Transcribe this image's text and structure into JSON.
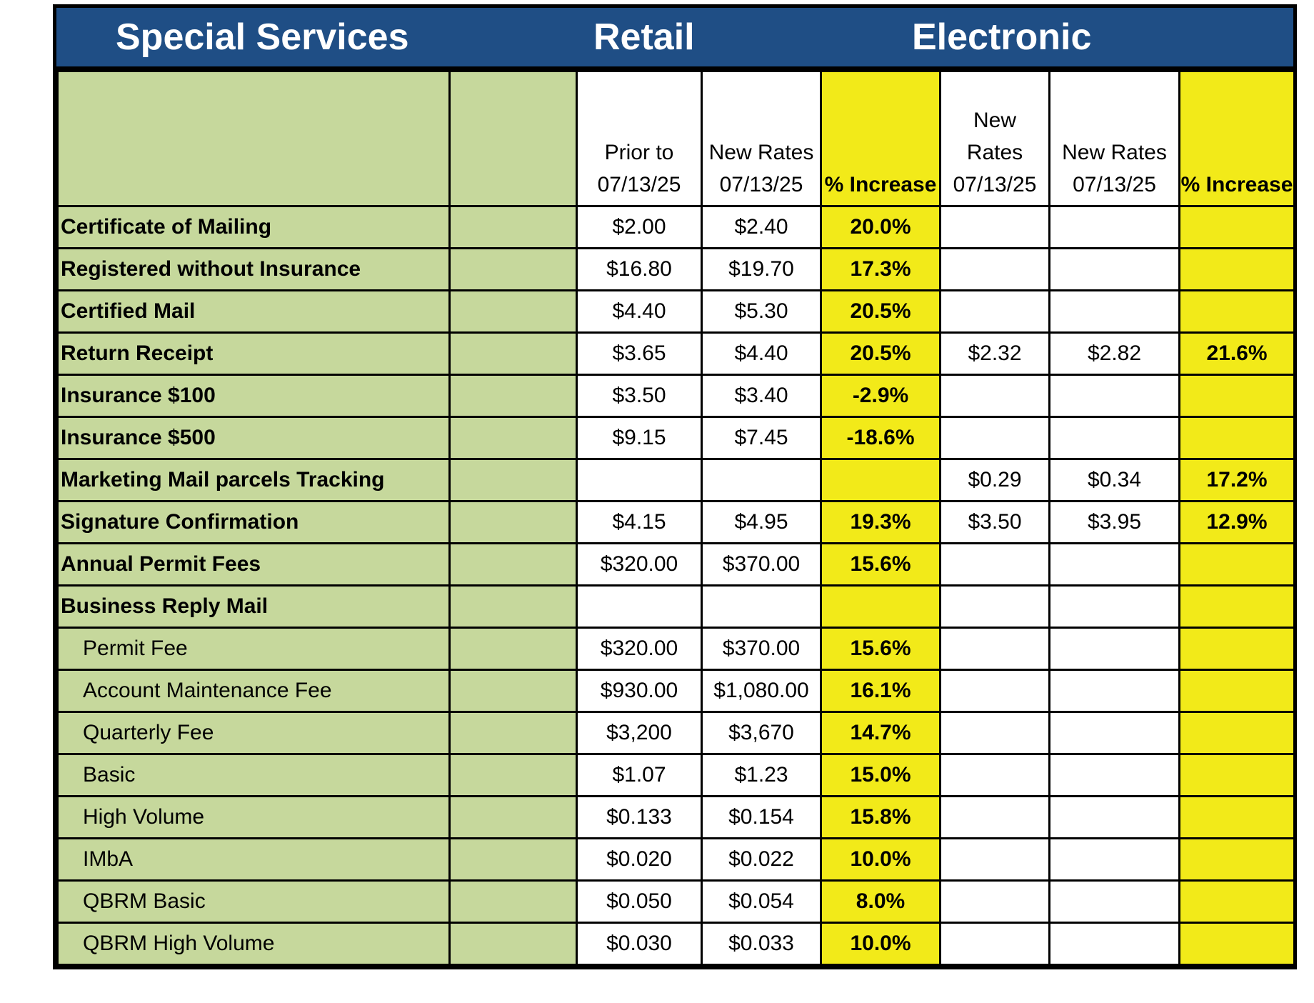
{
  "banner": {
    "title": "Special Services",
    "retail": "Retail",
    "electronic": "Electronic"
  },
  "columns": {
    "retail_prior": [
      "Prior to",
      "07/13/25"
    ],
    "retail_new": [
      "New Rates",
      "07/13/25"
    ],
    "retail_pct": "% Increase",
    "elec_new_a": [
      "New",
      "Rates",
      "07/13/25"
    ],
    "elec_new_b": [
      "New Rates",
      "07/13/25"
    ],
    "elec_pct": "% Increase"
  },
  "rows": [
    {
      "label": "Certificate of Mailing",
      "bold": true,
      "prior": "$2.00",
      "new": "$2.40",
      "pct": "20.0%",
      "e_prior": "",
      "e_new": "",
      "e_pct": ""
    },
    {
      "label": "Registered without Insurance",
      "bold": true,
      "prior": "$16.80",
      "new": "$19.70",
      "pct": "17.3%",
      "e_prior": "",
      "e_new": "",
      "e_pct": ""
    },
    {
      "label": "Certified Mail",
      "bold": true,
      "prior": "$4.40",
      "new": "$5.30",
      "pct": "20.5%",
      "e_prior": "",
      "e_new": "",
      "e_pct": ""
    },
    {
      "label": "Return Receipt",
      "bold": true,
      "prior": "$3.65",
      "new": "$4.40",
      "pct": "20.5%",
      "e_prior": "$2.32",
      "e_new": "$2.82",
      "e_pct": "21.6%"
    },
    {
      "label": "Insurance $100",
      "bold": true,
      "prior": "$3.50",
      "new": "$3.40",
      "pct": "-2.9%",
      "e_prior": "",
      "e_new": "",
      "e_pct": ""
    },
    {
      "label": "Insurance $500",
      "bold": true,
      "prior": "$9.15",
      "new": "$7.45",
      "pct": "-18.6%",
      "e_prior": "",
      "e_new": "",
      "e_pct": ""
    },
    {
      "label": "Marketing Mail parcels Tracking",
      "bold": true,
      "prior": "",
      "new": "",
      "pct": "",
      "e_prior": "$0.29",
      "e_new": "$0.34",
      "e_pct": "17.2%"
    },
    {
      "label": "Signature Confirmation",
      "bold": true,
      "prior": "$4.15",
      "new": "$4.95",
      "pct": "19.3%",
      "e_prior": "$3.50",
      "e_new": "$3.95",
      "e_pct": "12.9%"
    },
    {
      "label": "Annual Permit Fees",
      "bold": true,
      "prior": "$320.00",
      "new": "$370.00",
      "pct": "15.6%",
      "e_prior": "",
      "e_new": "",
      "e_pct": ""
    },
    {
      "label": "Business Reply Mail",
      "bold": true,
      "prior": "",
      "new": "",
      "pct": "",
      "e_prior": "",
      "e_new": "",
      "e_pct": ""
    },
    {
      "label": "Permit Fee",
      "bold": false,
      "prior": "$320.00",
      "new": "$370.00",
      "pct": "15.6%",
      "e_prior": "",
      "e_new": "",
      "e_pct": ""
    },
    {
      "label": "Account Maintenance Fee",
      "bold": false,
      "prior": "$930.00",
      "new": "$1,080.00",
      "pct": "16.1%",
      "e_prior": "",
      "e_new": "",
      "e_pct": ""
    },
    {
      "label": "Quarterly Fee",
      "bold": false,
      "prior": "$3,200",
      "new": "$3,670",
      "pct": "14.7%",
      "e_prior": "",
      "e_new": "",
      "e_pct": ""
    },
    {
      "label": "Basic",
      "bold": false,
      "prior": "$1.07",
      "new": "$1.23",
      "pct": "15.0%",
      "e_prior": "",
      "e_new": "",
      "e_pct": ""
    },
    {
      "label": "High Volume",
      "bold": false,
      "prior": "$0.133",
      "new": "$0.154",
      "pct": "15.8%",
      "e_prior": "",
      "e_new": "",
      "e_pct": ""
    },
    {
      "label": "IMbA",
      "bold": false,
      "prior": "$0.020",
      "new": "$0.022",
      "pct": "10.0%",
      "e_prior": "",
      "e_new": "",
      "e_pct": ""
    },
    {
      "label": "QBRM Basic",
      "bold": false,
      "prior": "$0.050",
      "new": "$0.054",
      "pct": "8.0%",
      "e_prior": "",
      "e_new": "",
      "e_pct": ""
    },
    {
      "label": "QBRM High Volume",
      "bold": false,
      "prior": "$0.030",
      "new": "$0.033",
      "pct": "10.0%",
      "e_prior": "",
      "e_new": "",
      "e_pct": ""
    }
  ]
}
